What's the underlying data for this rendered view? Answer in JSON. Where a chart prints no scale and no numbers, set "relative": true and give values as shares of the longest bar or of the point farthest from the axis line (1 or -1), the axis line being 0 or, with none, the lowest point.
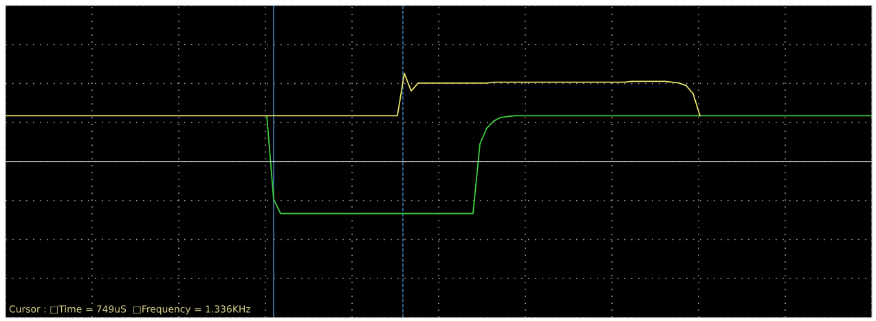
{
  "chart_data": {
    "type": "line",
    "relative": true,
    "grid": true,
    "tick_labels": false,
    "legend": false,
    "categories": [
      null,
      null,
      null,
      null,
      null,
      null,
      null,
      null,
      null,
      null,
      null,
      null,
      null,
      null,
      null,
      null,
      null,
      null,
      null,
      null,
      null,
      null,
      null,
      null,
      null,
      null,
      null,
      null,
      null,
      null,
      null,
      null,
      null,
      null,
      null,
      null,
      null,
      null,
      null,
      null,
      null,
      null,
      null,
      null,
      null,
      null,
      null,
      null,
      null,
      null,
      null,
      null,
      null,
      null,
      null,
      null,
      null,
      null,
      null,
      null,
      null,
      null,
      null,
      null,
      null,
      null,
      null,
      null,
      null,
      null,
      null,
      null,
      null,
      null,
      null,
      null,
      null,
      null,
      null,
      null,
      null,
      null,
      null,
      null,
      null,
      null,
      null,
      null,
      null,
      null,
      null,
      null,
      null,
      null,
      null,
      null,
      null,
      null,
      null,
      null,
      null,
      null,
      null,
      null,
      null,
      null,
      null,
      null,
      null,
      null,
      null,
      null,
      null,
      null,
      null,
      null,
      null,
      null,
      null,
      null,
      null,
      null,
      null,
      null,
      null,
      null,
      null
    ],
    "series": [
      {
        "color": "#e6e46a",
        "values": [
          0.52,
          0.52,
          0.52,
          0.52,
          0.52,
          0.52,
          0.52,
          0.52,
          0.52,
          0.52,
          0.52,
          0.52,
          0.52,
          0.52,
          0.52,
          0.52,
          0.52,
          0.52,
          0.52,
          0.52,
          0.52,
          0.52,
          0.52,
          0.52,
          0.52,
          0.52,
          0.52,
          0.52,
          0.52,
          0.52,
          0.52,
          0.52,
          0.52,
          0.52,
          0.52,
          0.52,
          0.52,
          0.52,
          0.52,
          0.52,
          0.52,
          0.52,
          0.52,
          0.52,
          0.52,
          0.52,
          0.52,
          0.52,
          0.52,
          0.52,
          0.52,
          0.52,
          0.52,
          0.52,
          0.52,
          0.52,
          0.52,
          0.52,
          1.0,
          0.8,
          0.89,
          0.89,
          0.89,
          0.89,
          0.89,
          0.89,
          0.89,
          0.89,
          0.89,
          0.89,
          0.89,
          0.9,
          0.9,
          0.9,
          0.9,
          0.9,
          0.9,
          0.9,
          0.9,
          0.9,
          0.9,
          0.9,
          0.9,
          0.9,
          0.9,
          0.9,
          0.9,
          0.9,
          0.9,
          0.9,
          0.9,
          0.91,
          0.91,
          0.91,
          0.91,
          0.91,
          0.91,
          0.9,
          0.89,
          0.86,
          0.77,
          0.52,
          null,
          null,
          null,
          null,
          null,
          null,
          null,
          null,
          null,
          null,
          null,
          null,
          null,
          null,
          null,
          null,
          null,
          null,
          null,
          null,
          null,
          null,
          null,
          null,
          null
        ]
      },
      {
        "color": "#3ecf3e",
        "values": [
          null,
          null,
          null,
          null,
          null,
          null,
          null,
          null,
          null,
          null,
          null,
          null,
          null,
          null,
          null,
          null,
          null,
          null,
          null,
          null,
          null,
          null,
          null,
          null,
          null,
          null,
          null,
          null,
          null,
          null,
          null,
          null,
          null,
          null,
          null,
          null,
          null,
          null,
          0.52,
          -0.43,
          -0.59,
          -0.59,
          -0.59,
          -0.59,
          -0.59,
          -0.59,
          -0.59,
          -0.59,
          -0.59,
          -0.59,
          -0.59,
          -0.59,
          -0.59,
          -0.59,
          -0.59,
          -0.59,
          -0.59,
          -0.59,
          -0.59,
          -0.59,
          -0.59,
          -0.59,
          -0.59,
          -0.59,
          -0.59,
          -0.59,
          -0.59,
          -0.59,
          -0.59,
          0.2,
          0.38,
          0.46,
          0.5,
          0.51,
          0.52,
          0.52,
          0.52,
          0.52,
          0.52,
          0.52,
          0.52,
          0.52,
          0.52,
          0.52,
          0.52,
          0.52,
          0.52,
          0.52,
          0.52,
          0.52,
          0.52,
          0.52,
          0.52,
          0.52,
          0.52,
          0.52,
          0.52,
          0.52,
          0.52,
          0.52,
          0.52,
          0.52,
          0.52,
          0.52,
          0.52,
          0.52,
          0.52,
          0.52,
          0.52,
          0.52,
          0.52,
          0.52,
          0.52,
          0.52,
          0.52,
          0.52,
          0.52,
          0.52,
          0.52,
          0.52,
          0.52,
          0.52,
          0.52,
          0.52,
          0.52,
          0.52,
          0.52
        ]
      }
    ],
    "annotations": [
      "Cursor : □Time = 749uS  □Frequency = 1.336KHz"
    ]
  }
}
